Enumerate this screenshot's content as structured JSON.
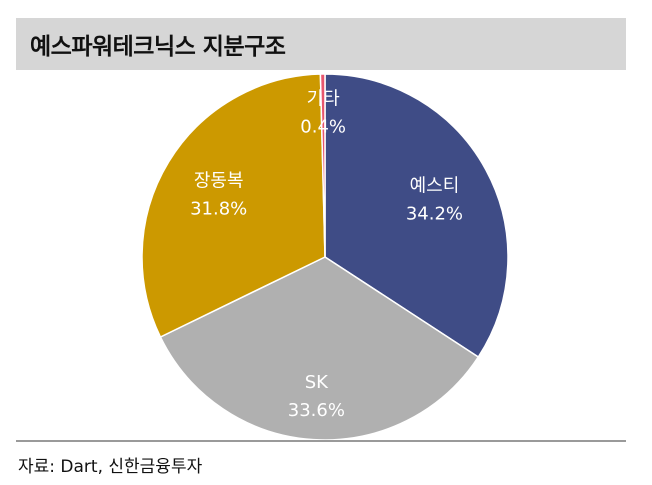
{
  "header": {
    "title": "예스파워테크닉스 지분구조"
  },
  "footer": {
    "source": "자료: Dart, 신한금융투자"
  },
  "chart_data": {
    "type": "pie",
    "slices": [
      {
        "name": "예스티",
        "value": 34.2,
        "label": "34.2%",
        "color": "#3f4c86",
        "label_color": "#ffffff"
      },
      {
        "name": "SK",
        "value": 33.6,
        "label": "33.6%",
        "color": "#b0b0b0",
        "label_color": "#ffffff"
      },
      {
        "name": "장동복",
        "value": 31.8,
        "label": "31.8%",
        "color": "#cc9900",
        "label_color": "#ffffff"
      },
      {
        "name": "기타",
        "value": 0.4,
        "label": "0.4%",
        "color": "#e8566e",
        "label_color": "#ffffff"
      }
    ],
    "start": "top",
    "direction": "clockwise",
    "legend": "none"
  }
}
